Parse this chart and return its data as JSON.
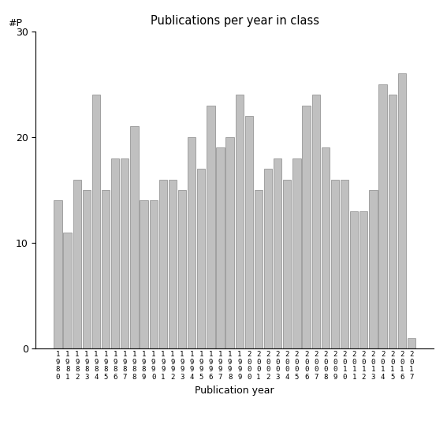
{
  "years": [
    "1980",
    "1981",
    "1982",
    "1983",
    "1984",
    "1985",
    "1986",
    "1987",
    "1988",
    "1989",
    "1990",
    "1991",
    "1992",
    "1993",
    "1994",
    "1995",
    "1996",
    "1997",
    "1998",
    "1999",
    "2000",
    "2001",
    "2002",
    "2003",
    "2004",
    "2005",
    "2006",
    "2007",
    "2008",
    "2009",
    "2010",
    "2011",
    "2012",
    "2013",
    "2014",
    "2015",
    "2016",
    "2017"
  ],
  "values": [
    14,
    11,
    16,
    15,
    24,
    15,
    18,
    18,
    21,
    14,
    14,
    16,
    16,
    15,
    20,
    17,
    23,
    19,
    20,
    24,
    22,
    15,
    17,
    18,
    16,
    18,
    23,
    24,
    19,
    16,
    16,
    13,
    13,
    15,
    25,
    24,
    26,
    1
  ],
  "title": "Publications per year in class",
  "xlabel": "Publication year",
  "ylabel": "#P",
  "ylim": [
    0,
    30
  ],
  "yticks": [
    0,
    10,
    20,
    30
  ],
  "bar_color": "#c0c0c0",
  "bar_edgecolor": "#888888",
  "background_color": "#ffffff"
}
